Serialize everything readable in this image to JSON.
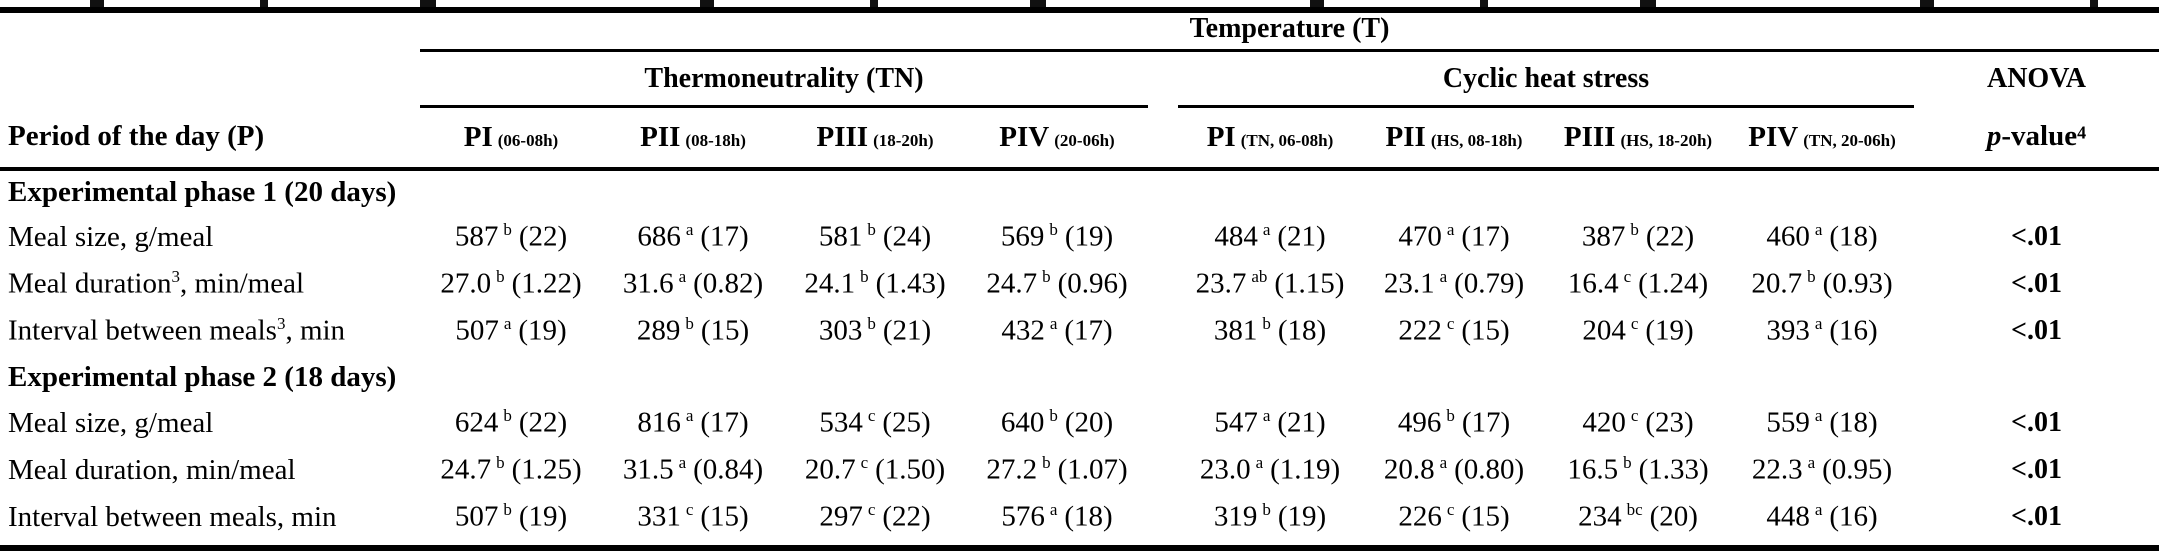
{
  "table": {
    "top_header": "Temperature (T)",
    "row_header_title": "Period of the day (P)",
    "groups": [
      {
        "label": "Thermoneutrality (TN)"
      },
      {
        "label": "Cyclic heat stress"
      }
    ],
    "anova": {
      "label": "ANOVA",
      "p": "p",
      "suffix": "-value",
      "sup": "4"
    },
    "columns": [
      {
        "main": "PI",
        "sub": "(06-08h)"
      },
      {
        "main": "PII",
        "sub": "(08-18h)"
      },
      {
        "main": "PIII",
        "sub": "(18-20h)"
      },
      {
        "main": "PIV",
        "sub": "(20-06h)"
      },
      {
        "main": "PI",
        "sub": "(TN, 06-08h)"
      },
      {
        "main": "PII",
        "sub": "(HS, 08-18h)"
      },
      {
        "main": "PIII",
        "sub": "(HS, 18-20h)"
      },
      {
        "main": "PIV",
        "sub": "(TN, 20-06h)"
      }
    ],
    "sections": [
      {
        "title": "Experimental phase 1 (20 days)",
        "rows": [
          {
            "label": [
              "Meal size, g/meal"
            ],
            "cells": [
              {
                "v": "587",
                "s": "b",
                "e": "(22)"
              },
              {
                "v": "686",
                "s": "a",
                "e": "(17)"
              },
              {
                "v": "581",
                "s": "b",
                "e": "(24)"
              },
              {
                "v": "569",
                "s": "b",
                "e": "(19)"
              },
              {
                "v": "484",
                "s": "a",
                "e": "(21)"
              },
              {
                "v": "470",
                "s": "a",
                "e": "(17)"
              },
              {
                "v": "387",
                "s": "b",
                "e": "(22)"
              },
              {
                "v": "460",
                "s": "a",
                "e": "(18)"
              }
            ],
            "p": "<.01"
          },
          {
            "label": [
              "Meal duration",
              "3",
              ", min/meal"
            ],
            "cells": [
              {
                "v": "27.0",
                "s": "b",
                "e": "(1.22)"
              },
              {
                "v": "31.6",
                "s": "a",
                "e": "(0.82)"
              },
              {
                "v": "24.1",
                "s": "b",
                "e": "(1.43)"
              },
              {
                "v": "24.7",
                "s": "b",
                "e": "(0.96)"
              },
              {
                "v": "23.7",
                "s": "ab",
                "e": "(1.15)"
              },
              {
                "v": "23.1",
                "s": "a",
                "e": "(0.79)"
              },
              {
                "v": "16.4",
                "s": "c",
                "e": "(1.24)"
              },
              {
                "v": "20.7",
                "s": "b",
                "e": "(0.93)"
              }
            ],
            "p": "<.01"
          },
          {
            "label": [
              "Interval between meals",
              "3",
              ", min"
            ],
            "cells": [
              {
                "v": "507",
                "s": "a",
                "e": "(19)"
              },
              {
                "v": "289",
                "s": "b",
                "e": "(15)"
              },
              {
                "v": "303",
                "s": "b",
                "e": "(21)"
              },
              {
                "v": "432",
                "s": "a",
                "e": "(17)"
              },
              {
                "v": "381",
                "s": "b",
                "e": "(18)"
              },
              {
                "v": "222",
                "s": "c",
                "e": "(15)"
              },
              {
                "v": "204",
                "s": "c",
                "e": "(19)"
              },
              {
                "v": "393",
                "s": "a",
                "e": "(16)"
              }
            ],
            "p": "<.01"
          }
        ]
      },
      {
        "title": "Experimental phase 2 (18 days)",
        "rows": [
          {
            "label": [
              "Meal size, g/meal"
            ],
            "cells": [
              {
                "v": "624",
                "s": "b",
                "e": "(22)"
              },
              {
                "v": "816",
                "s": "a",
                "e": "(17)"
              },
              {
                "v": "534",
                "s": "c",
                "e": "(25)"
              },
              {
                "v": "640",
                "s": "b",
                "e": "(20)"
              },
              {
                "v": "547",
                "s": "a",
                "e": "(21)"
              },
              {
                "v": "496",
                "s": "b",
                "e": "(17)"
              },
              {
                "v": "420",
                "s": "c",
                "e": "(23)"
              },
              {
                "v": "559",
                "s": "a",
                "e": "(18)"
              }
            ],
            "p": "<.01"
          },
          {
            "label": [
              "Meal duration, min/meal"
            ],
            "cells": [
              {
                "v": "24.7",
                "s": "b",
                "e": "(1.25)"
              },
              {
                "v": "31.5",
                "s": "a",
                "e": "(0.84)"
              },
              {
                "v": "20.7",
                "s": "c",
                "e": "(1.50)"
              },
              {
                "v": "27.2",
                "s": "b",
                "e": "(1.07)"
              },
              {
                "v": "23.0",
                "s": "a",
                "e": "(1.19)"
              },
              {
                "v": "20.8",
                "s": "a",
                "e": "(0.80)"
              },
              {
                "v": "16.5",
                "s": "b",
                "e": "(1.33)"
              },
              {
                "v": "22.3",
                "s": "a",
                "e": "(0.95)"
              }
            ],
            "p": "<.01"
          },
          {
            "label": [
              "Interval between meals, min"
            ],
            "cells": [
              {
                "v": "507",
                "s": "b",
                "e": "(19)"
              },
              {
                "v": "331",
                "s": "c",
                "e": "(15)"
              },
              {
                "v": "297",
                "s": "c",
                "e": "(22)"
              },
              {
                "v": "576",
                "s": "a",
                "e": "(18)"
              },
              {
                "v": "319",
                "s": "b",
                "e": "(19)"
              },
              {
                "v": "226",
                "s": "c",
                "e": "(15)"
              },
              {
                "v": "234",
                "s": "bc",
                "e": "(20)"
              },
              {
                "v": "448",
                "s": "a",
                "e": "(16)"
              }
            ],
            "p": "<.01"
          }
        ]
      }
    ]
  }
}
